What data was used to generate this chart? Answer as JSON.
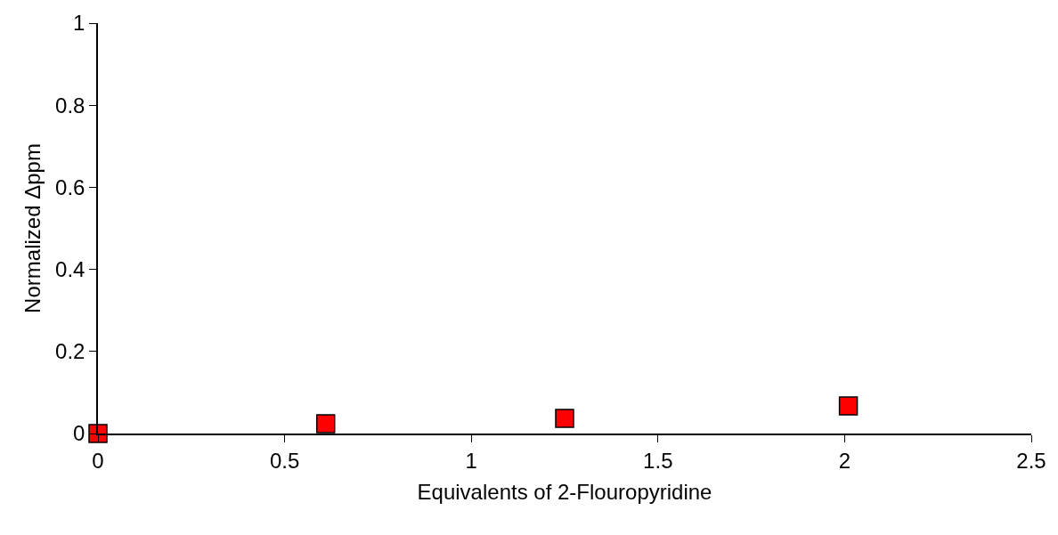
{
  "chart_data": {
    "type": "scatter",
    "xlabel": "Equivalents of 2-Flouropyridine",
    "ylabel": "Normalized Δppm",
    "x": [
      0,
      0.61,
      1.25,
      2.01
    ],
    "series": [
      {
        "color": "#ff0000",
        "values": [
          0,
          0.024,
          0.037,
          0.067
        ]
      }
    ],
    "xlim": [
      0,
      2.5
    ],
    "xticks": [
      0,
      0.5,
      1,
      1.5,
      2,
      2.5
    ],
    "ylim": [
      0,
      1
    ],
    "yticks": [
      0,
      0.2,
      0.4,
      0.6,
      0.8,
      1
    ],
    "marker": "square"
  }
}
